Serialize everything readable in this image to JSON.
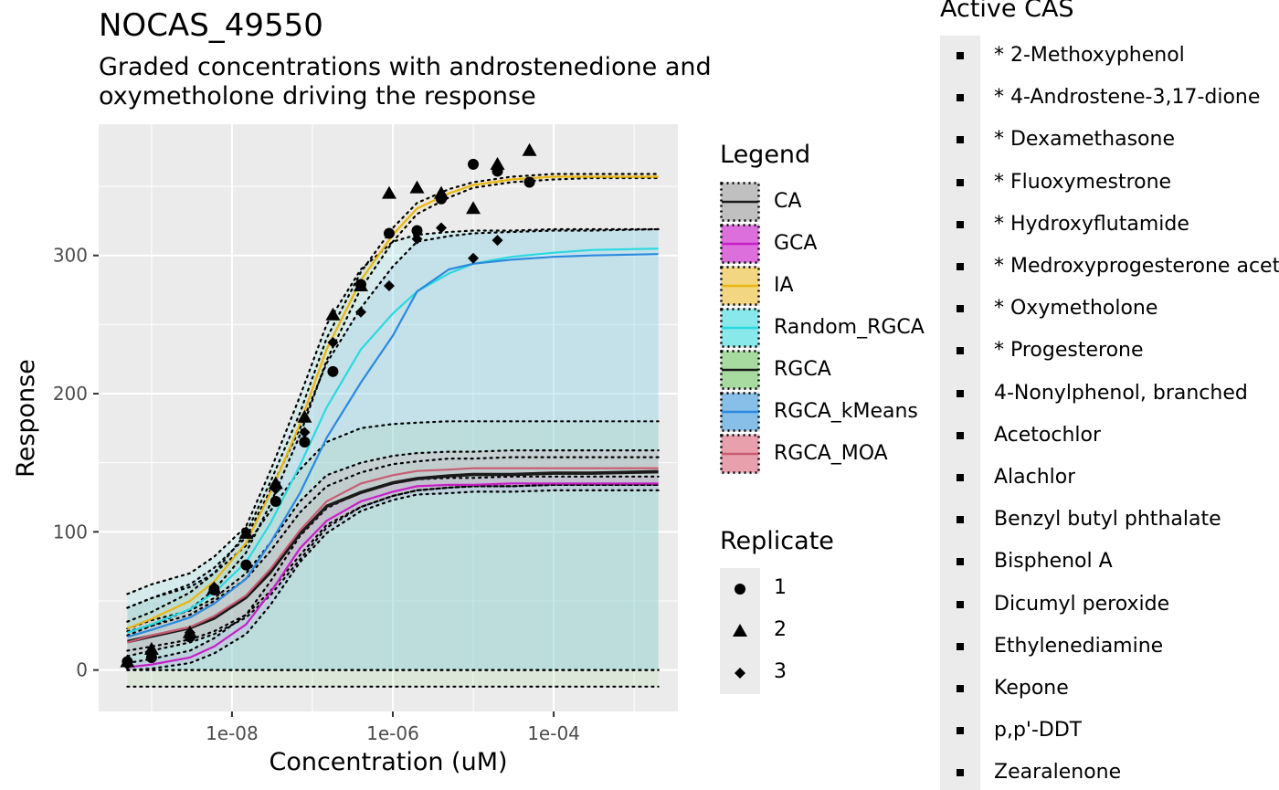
{
  "title": "NOCAS_49550",
  "subtitle": "Graded concentrations with androstenedione and oxymetholone driving the response",
  "chart_data": {
    "type": "line",
    "xlabel": "Concentration (uM)",
    "ylabel": "Response",
    "xscale": "log10",
    "xlim": [
      2.2e-10,
      0.0035
    ],
    "ylim": [
      -30,
      395
    ],
    "x_tick_labels": [
      "1e-08",
      "1e-06",
      "1e-04"
    ],
    "x_ticks": [
      1e-08,
      1e-06,
      0.0001
    ],
    "y_ticks": [
      0,
      100,
      200,
      300
    ],
    "grid": true,
    "x": [
      5e-10,
      1e-09,
      3e-09,
      6e-09,
      1.5e-08,
      3e-08,
      7e-08,
      1.5e-07,
      4e-07,
      1e-06,
      2e-06,
      5e-06,
      1e-05,
      3e-05,
      0.0001,
      0.0003,
      0.002
    ],
    "series": [
      {
        "name": "CA",
        "color": "#1a1a1a",
        "fill": "#c0c0c0",
        "values": [
          20,
          24,
          30,
          37,
          52,
          70,
          98,
          118,
          128,
          135,
          138,
          140,
          141,
          141,
          142,
          142,
          143
        ],
        "lower": [
          14,
          17,
          22,
          28,
          40,
          57,
          83,
          105,
          118,
          126,
          130,
          132,
          133,
          133,
          134,
          134,
          134
        ],
        "upper": [
          28,
          32,
          40,
          50,
          66,
          86,
          114,
          133,
          143,
          149,
          151,
          153,
          153,
          154,
          154,
          154,
          154
        ]
      },
      {
        "name": "GCA",
        "color": "#c61fc6",
        "fill": "#dd6fdd",
        "values": [
          2,
          4,
          9,
          17,
          33,
          56,
          88,
          108,
          122,
          129,
          133,
          134,
          134,
          135,
          135,
          135,
          135
        ],
        "lower": [
          0,
          1,
          5,
          12,
          26,
          47,
          78,
          99,
          115,
          123,
          127,
          128,
          129,
          129,
          130,
          130,
          130
        ],
        "upper": [
          5,
          8,
          14,
          23,
          40,
          64,
          97,
          117,
          129,
          135,
          138,
          139,
          139,
          140,
          140,
          140,
          140
        ]
      },
      {
        "name": "IA",
        "color": "#e8b614",
        "fill": "#f2d682",
        "values": [
          30,
          37,
          50,
          64,
          92,
          128,
          178,
          232,
          282,
          315,
          334,
          345,
          351,
          355,
          357,
          357,
          357
        ],
        "lower": [
          25,
          32,
          44,
          58,
          85,
          120,
          170,
          224,
          276,
          310,
          330,
          342,
          349,
          353,
          355,
          356,
          356
        ],
        "upper": [
          35,
          42,
          56,
          70,
          99,
          136,
          186,
          240,
          288,
          320,
          338,
          348,
          353,
          357,
          359,
          359,
          359
        ]
      },
      {
        "name": "Random_RGCA",
        "color": "#2ad9e0",
        "fill": "#88e8ea",
        "values": [
          27,
          33,
          44,
          56,
          78,
          106,
          148,
          190,
          232,
          258,
          274,
          287,
          294,
          299,
          302,
          304,
          305
        ],
        "lower": [
          0,
          0,
          0,
          0,
          0,
          0,
          0,
          0,
          0,
          0,
          0,
          0,
          0,
          0,
          0,
          0,
          0
        ],
        "upper": [
          55,
          62,
          70,
          82,
          104,
          144,
          198,
          250,
          290,
          310,
          315,
          317,
          318,
          318,
          319,
          319,
          319
        ]
      },
      {
        "name": "RGCA",
        "color": "#1a1a1a",
        "fill": "#a8dba0",
        "values": [
          21,
          25,
          31,
          38,
          53,
          71,
          99,
          119,
          129,
          136,
          139,
          141,
          142,
          142,
          143,
          143,
          144
        ],
        "lower": [
          -12,
          -12,
          -12,
          -12,
          -12,
          -12,
          -12,
          -12,
          -12,
          -12,
          -12,
          -12,
          -12,
          -12,
          -12,
          -12,
          -12
        ],
        "upper": [
          45,
          52,
          60,
          70,
          90,
          115,
          145,
          165,
          175,
          178,
          179,
          180,
          180,
          180,
          180,
          180,
          180
        ]
      },
      {
        "name": "RGCA_kMeans",
        "color": "#2a8adf",
        "fill": "#88bfe8",
        "values": [
          24,
          29,
          38,
          48,
          66,
          92,
          128,
          168,
          208,
          242,
          274,
          290,
          294,
          297,
          299,
          300,
          301
        ],
        "lower": [
          0,
          0,
          0,
          0,
          0,
          0,
          0,
          0,
          0,
          0,
          0,
          0,
          0,
          0,
          0,
          0,
          0
        ],
        "upper": [
          45,
          52,
          62,
          74,
          96,
          130,
          175,
          222,
          262,
          292,
          310,
          314,
          316,
          317,
          318,
          318,
          319
        ]
      },
      {
        "name": "RGCA_MOA",
        "color": "#c75c72",
        "fill": "#e9a0ad",
        "values": [
          20,
          25,
          31,
          39,
          54,
          73,
          101,
          122,
          135,
          141,
          144,
          145,
          146,
          146,
          146,
          146,
          146
        ],
        "lower": [
          10,
          14,
          20,
          26,
          38,
          54,
          80,
          103,
          118,
          126,
          130,
          132,
          133,
          133,
          134,
          134,
          134
        ],
        "upper": [
          30,
          36,
          43,
          52,
          70,
          92,
          122,
          141,
          150,
          155,
          157,
          158,
          158,
          159,
          159,
          159,
          159
        ]
      }
    ],
    "replicates": [
      {
        "name": "1",
        "shape": "circle",
        "points": [
          [
            5e-10,
            6
          ],
          [
            1e-09,
            9
          ],
          [
            3e-09,
            24
          ],
          [
            6e-09,
            58
          ],
          [
            1.5e-08,
            76
          ],
          [
            3.5e-08,
            122
          ],
          [
            8e-08,
            165
          ],
          [
            1.8e-07,
            216
          ],
          [
            4e-07,
            279
          ],
          [
            9e-07,
            316
          ],
          [
            2e-06,
            318
          ],
          [
            4e-06,
            341
          ],
          [
            1e-05,
            366
          ],
          [
            2e-05,
            361
          ],
          [
            5e-05,
            353
          ]
        ]
      },
      {
        "name": "2",
        "shape": "triangle",
        "points": [
          [
            5e-10,
            6
          ],
          [
            1e-09,
            15
          ],
          [
            3e-09,
            27
          ],
          [
            6e-09,
            59
          ],
          [
            1.5e-08,
            99
          ],
          [
            3.5e-08,
            135
          ],
          [
            8e-08,
            183
          ],
          [
            1.8e-07,
            257
          ],
          [
            4e-07,
            278
          ],
          [
            9e-07,
            345
          ],
          [
            2e-06,
            349
          ],
          [
            4e-06,
            345
          ],
          [
            1e-05,
            334
          ],
          [
            2e-05,
            366
          ],
          [
            5e-05,
            376
          ]
        ]
      },
      {
        "name": "3",
        "shape": "diamond",
        "points": [
          [
            5e-10,
            4
          ],
          [
            1e-09,
            13
          ],
          [
            3e-09,
            27
          ],
          [
            6e-09,
            60
          ],
          [
            1.5e-08,
            100
          ],
          [
            3.5e-08,
            131
          ],
          [
            8e-08,
            172
          ],
          [
            1.8e-07,
            237
          ],
          [
            4e-07,
            259
          ],
          [
            9e-07,
            278
          ],
          [
            2e-06,
            312
          ],
          [
            4e-06,
            320
          ],
          [
            1e-05,
            298
          ],
          [
            2e-05,
            311
          ]
        ]
      }
    ]
  },
  "legend": {
    "title": "Legend",
    "items": [
      {
        "label": "CA",
        "line": "#1a1a1a",
        "fill": "#c0c0c0"
      },
      {
        "label": "GCA",
        "line": "#c61fc6",
        "fill": "#dd6fdd"
      },
      {
        "label": "IA",
        "line": "#e8b614",
        "fill": "#f2d682"
      },
      {
        "label": "Random_RGCA",
        "line": "#2ad9e0",
        "fill": "#88e8ea"
      },
      {
        "label": "RGCA",
        "line": "#1a1a1a",
        "fill": "#a8dba0"
      },
      {
        "label": "RGCA_kMeans",
        "line": "#2a8adf",
        "fill": "#88bfe8"
      },
      {
        "label": "RGCA_MOA",
        "line": "#c75c72",
        "fill": "#e9a0ad"
      }
    ]
  },
  "replicate_legend": {
    "title": "Replicate",
    "items": [
      {
        "label": "1",
        "shape": "circle"
      },
      {
        "label": "2",
        "shape": "triangle"
      },
      {
        "label": "3",
        "shape": "diamond"
      }
    ]
  },
  "active_cas": {
    "title": "Active CAS",
    "items": [
      "* 2-Methoxyphenol",
      "* 4-Androstene-3,17-dione",
      "* Dexamethasone",
      "* Fluoxymestrone",
      "* Hydroxyflutamide",
      "* Medroxyprogesterone acetate",
      "* Oxymetholone",
      "* Progesterone",
      "4-Nonylphenol, branched",
      "Acetochlor",
      "Alachlor",
      "Benzyl butyl phthalate",
      "Bisphenol A",
      "Dicumyl peroxide",
      "Ethylenediamine",
      "Kepone",
      "p,p'-DDT",
      "Zearalenone"
    ]
  }
}
